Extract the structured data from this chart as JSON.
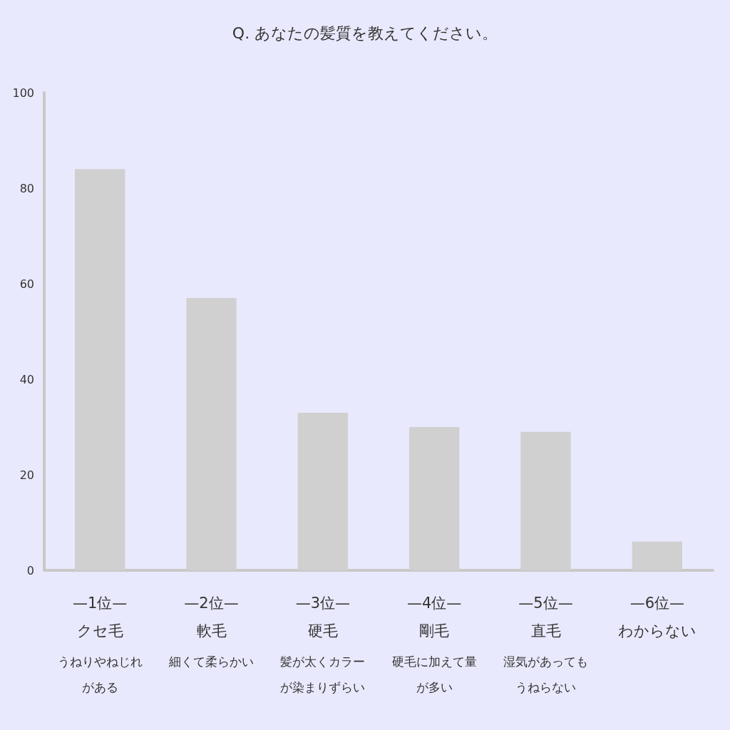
{
  "chart_data": {
    "type": "bar",
    "title": "Q. あなたの髪質を教えてください。",
    "categories": [
      "クセ毛",
      "軟毛",
      "硬毛",
      "剛毛",
      "直毛",
      "わからない"
    ],
    "values": [
      84,
      57,
      33,
      30,
      29,
      6
    ],
    "color": "#d0d0d0",
    "ylim": [
      0,
      100
    ],
    "yticks": [
      0,
      20,
      40,
      60,
      80,
      100
    ],
    "grid": false,
    "annotations": [
      "—1位—",
      "—2位—",
      "—3位—",
      "—4位—",
      "—5位—",
      "—6位—",
      "うねりやねじれがある",
      "細くて柔らかい",
      "髪が太くカラーが染まりずらい",
      "硬毛に加えて量が多い",
      "湿気があってもうねらない"
    ]
  }
}
